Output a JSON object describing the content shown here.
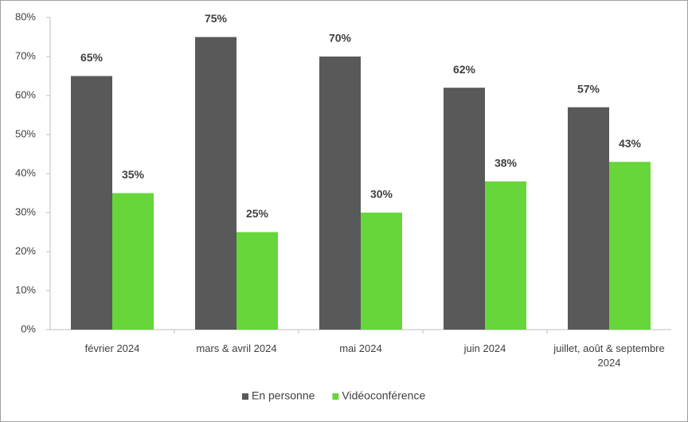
{
  "chart_data": {
    "type": "bar",
    "categories": [
      "février 2024",
      "mars & avril 2024",
      "mai 2024",
      "juin 2024",
      "juillet, août & septembre 2024"
    ],
    "series": [
      {
        "name": "En personne",
        "color": "#595959",
        "values": [
          65,
          75,
          70,
          62,
          57
        ],
        "value_labels": [
          "65%",
          "75%",
          "70%",
          "62%",
          "57%"
        ]
      },
      {
        "name": "Vidéoconférence",
        "color": "#66d63a",
        "values": [
          35,
          25,
          30,
          38,
          43
        ],
        "value_labels": [
          "35%",
          "25%",
          "30%",
          "38%",
          "43%"
        ]
      }
    ],
    "ylim": [
      0,
      80
    ],
    "yticks": [
      {
        "value": 0,
        "label": "0%"
      },
      {
        "value": 10,
        "label": "10%"
      },
      {
        "value": 20,
        "label": "20%"
      },
      {
        "value": 30,
        "label": "30%"
      },
      {
        "value": 40,
        "label": "40%"
      },
      {
        "value": 50,
        "label": "50%"
      },
      {
        "value": 60,
        "label": "60%"
      },
      {
        "value": 70,
        "label": "70%"
      },
      {
        "value": 80,
        "label": "80%"
      }
    ],
    "grid": false,
    "legend": "bottom"
  }
}
